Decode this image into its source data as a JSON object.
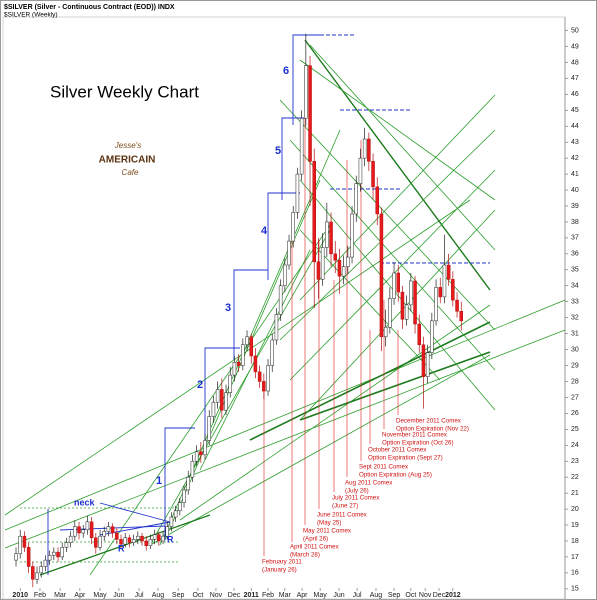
{
  "chart_data": {
    "type": "candlestick",
    "header": [
      "$SILVER (Silver - Continuous Contract (EOD)) INDX",
      "$SILVER (Weekly)"
    ],
    "title": "Silver Weekly Chart",
    "logo": [
      "Jesse's",
      "AMERICAIN",
      "Cafe"
    ],
    "wave_labels": [
      "1",
      "2",
      "3",
      "4",
      "5",
      "6"
    ],
    "pattern_labels": [
      "neck",
      "R",
      "R"
    ],
    "expiration_labels": [
      "February 2011",
      "(January 26)",
      "April 2011 Comex",
      "(March 28)",
      "May 2011 Comex",
      "(April 26)",
      "June 2011 Comex",
      "(May 25)",
      "July 2011 Comex",
      "(June 27)",
      "Aug 2011 Comex",
      "(July 26)",
      "Sept 2011 Comex",
      "Option Expiration (Aug 25)",
      "October 2011 Comex",
      "Option Expiration (Sept 27)",
      "November 2011 Comex",
      "Option Expiration (Oct 26)",
      "December 2011 Comex",
      "Option Expiration (Nov 22)"
    ],
    "up_color": "#ffffff",
    "down_color": "#e8191b",
    "open": [
      16.8,
      17.2,
      18.3,
      17.6,
      16.4,
      15.6,
      16.0,
      16.4,
      16.8,
      17.1,
      17.3,
      17.0,
      17.6,
      17.9,
      18.3,
      18.9,
      18.5,
      18.7,
      19.2,
      18.2,
      17.6,
      18.3,
      18.6,
      18.9,
      18.5,
      18.1,
      17.8,
      18.2,
      17.9,
      18.1,
      18.3,
      18.0,
      17.7,
      18.1,
      18.4,
      18.0,
      18.3,
      18.9,
      19.5,
      19.9,
      20.4,
      21.2,
      22.0,
      23.0,
      23.6,
      23.4,
      24.3,
      25.8,
      26.7,
      27.5,
      26.2,
      27.3,
      28.4,
      29.2,
      29.0,
      30.3,
      30.8,
      29.6,
      28.6,
      28.0,
      27.4,
      29.0,
      30.6,
      32.2,
      34.0,
      35.3,
      36.8,
      38.6,
      41.0,
      44.5,
      47.8,
      41.8,
      35.5,
      34.4,
      36.4,
      38.0,
      36.0,
      35.6,
      34.6,
      35.2,
      35.8,
      38.5,
      40.4,
      42.0,
      43.2,
      41.8,
      40.2,
      38.5,
      30.8,
      31.4,
      33.2,
      34.8,
      33.6,
      31.9,
      32.8,
      34.3,
      31.6,
      30.3,
      28.3,
      29.8,
      31.8,
      33.9,
      33.3,
      35.3,
      34.4,
      33.1,
      32.4
    ],
    "high": [
      17.6,
      18.7,
      18.6,
      17.9,
      16.7,
      16.4,
      16.7,
      17.1,
      17.4,
      17.6,
      17.6,
      17.9,
      18.2,
      18.6,
      19.3,
      19.2,
      19.0,
      19.6,
      19.5,
      18.5,
      18.7,
      18.9,
      19.2,
      19.1,
      18.8,
      18.4,
      18.5,
      18.4,
      18.4,
      18.6,
      18.5,
      18.3,
      18.4,
      18.7,
      18.6,
      18.6,
      19.2,
      19.8,
      20.2,
      20.7,
      21.5,
      22.4,
      23.4,
      24.0,
      24.2,
      24.7,
      26.2,
      27.1,
      28.0,
      28.2,
      27.8,
      28.9,
      29.6,
      29.7,
      30.7,
      31.2,
      31.0,
      30.1,
      29.0,
      28.5,
      29.4,
      31.0,
      32.6,
      34.4,
      35.7,
      37.2,
      39.0,
      41.4,
      45.0,
      49.8,
      48.4,
      42.6,
      37.0,
      37.3,
      39.2,
      38.6,
      36.8,
      36.3,
      35.9,
      36.5,
      39.0,
      40.9,
      42.6,
      43.9,
      43.6,
      42.3,
      40.8,
      38.9,
      32.5,
      33.9,
      35.5,
      35.3,
      34.0,
      33.4,
      34.8,
      34.6,
      32.2,
      30.8,
      30.3,
      32.3,
      34.4,
      34.5,
      37.2,
      36.0,
      34.9,
      33.6,
      33.0
    ],
    "low": [
      16.4,
      16.9,
      17.3,
      16.0,
      15.1,
      15.3,
      15.7,
      16.1,
      16.5,
      16.8,
      16.7,
      16.8,
      17.3,
      17.6,
      18.0,
      18.1,
      18.2,
      18.4,
      17.8,
      17.2,
      17.4,
      18.0,
      18.3,
      18.2,
      17.8,
      17.5,
      17.6,
      17.6,
      17.7,
      17.8,
      17.7,
      17.4,
      17.5,
      17.8,
      17.7,
      17.8,
      18.1,
      18.6,
      19.2,
      19.6,
      20.1,
      20.9,
      21.7,
      22.7,
      22.9,
      23.1,
      24.0,
      25.4,
      26.3,
      25.7,
      25.9,
      27.0,
      28.0,
      28.6,
      28.7,
      29.9,
      29.1,
      28.2,
      27.6,
      26.9,
      27.1,
      28.6,
      30.3,
      31.8,
      33.6,
      35.0,
      36.4,
      38.2,
      40.6,
      44.0,
      39.0,
      32.6,
      33.2,
      34.0,
      35.8,
      35.2,
      34.8,
      33.5,
      34.1,
      34.7,
      35.4,
      38.0,
      39.9,
      41.5,
      41.2,
      39.4,
      37.8,
      29.9,
      30.2,
      31.0,
      32.8,
      33.0,
      31.3,
      31.5,
      32.4,
      31.0,
      29.8,
      26.3,
      27.9,
      29.4,
      31.5,
      32.9,
      32.9,
      34.0,
      32.7,
      32.0,
      31.2
    ],
    "close": [
      17.2,
      18.3,
      17.6,
      16.4,
      15.6,
      16.0,
      16.4,
      16.8,
      17.1,
      17.3,
      17.0,
      17.6,
      17.9,
      18.3,
      18.9,
      18.5,
      18.7,
      19.2,
      18.2,
      17.6,
      18.3,
      18.6,
      18.9,
      18.5,
      18.1,
      17.8,
      18.2,
      17.9,
      18.1,
      18.3,
      18.0,
      17.7,
      18.1,
      18.4,
      18.0,
      18.3,
      18.9,
      19.5,
      19.9,
      20.4,
      21.2,
      22.0,
      23.0,
      23.6,
      23.4,
      24.3,
      25.8,
      26.7,
      27.5,
      26.2,
      27.3,
      28.4,
      29.2,
      29.0,
      30.3,
      30.8,
      29.6,
      28.6,
      28.0,
      27.4,
      29.0,
      30.6,
      32.2,
      34.0,
      35.3,
      36.8,
      38.6,
      41.0,
      44.5,
      47.8,
      41.8,
      35.5,
      34.4,
      36.4,
      38.0,
      36.0,
      35.6,
      34.6,
      35.2,
      35.8,
      38.5,
      40.4,
      42.0,
      43.2,
      41.8,
      40.2,
      38.5,
      30.8,
      31.4,
      33.2,
      34.8,
      33.6,
      31.9,
      32.8,
      34.3,
      31.6,
      30.3,
      28.3,
      29.8,
      31.8,
      33.9,
      33.3,
      35.3,
      34.4,
      33.1,
      32.4,
      31.8
    ],
    "xlim": [
      -3.1,
      130.7
    ],
    "xticks": [
      {
        "value": 1.0,
        "label": "2010"
      },
      {
        "value": 5.7,
        "label": "Feb"
      },
      {
        "value": 10.5,
        "label": "Mar"
      },
      {
        "value": 15.2,
        "label": "Apr"
      },
      {
        "value": 20.0,
        "label": "May"
      },
      {
        "value": 24.5,
        "label": "Jun"
      },
      {
        "value": 29.3,
        "label": "Jul"
      },
      {
        "value": 33.8,
        "label": "Aug"
      },
      {
        "value": 38.6,
        "label": "Sep"
      },
      {
        "value": 43.3,
        "label": "Oct"
      },
      {
        "value": 47.6,
        "label": "Nov"
      },
      {
        "value": 51.9,
        "label": "Dec"
      },
      {
        "value": 56.0,
        "label": "2011"
      },
      {
        "value": 60.0,
        "label": "Feb"
      },
      {
        "value": 64.0,
        "label": "Mar"
      },
      {
        "value": 68.1,
        "label": "Apr"
      },
      {
        "value": 72.4,
        "label": "May"
      },
      {
        "value": 76.9,
        "label": "Jun"
      },
      {
        "value": 81.2,
        "label": "Jul"
      },
      {
        "value": 85.7,
        "label": "Aug"
      },
      {
        "value": 90.0,
        "label": "Sep"
      },
      {
        "value": 94.0,
        "label": "Oct"
      },
      {
        "value": 97.4,
        "label": "Nov"
      },
      {
        "value": 100.7,
        "label": "Dec"
      },
      {
        "value": 104.0,
        "label": "2012"
      }
    ],
    "ylim": [
      14.3,
      51.6
    ],
    "yticks": [
      15,
      16,
      17,
      18,
      19,
      20,
      21,
      22,
      23,
      24,
      25,
      26,
      27,
      28,
      29,
      30,
      31,
      32,
      33,
      34,
      35,
      36,
      37,
      38,
      39,
      40,
      41,
      42,
      43,
      44,
      45,
      46,
      47,
      48,
      49,
      50
    ]
  }
}
